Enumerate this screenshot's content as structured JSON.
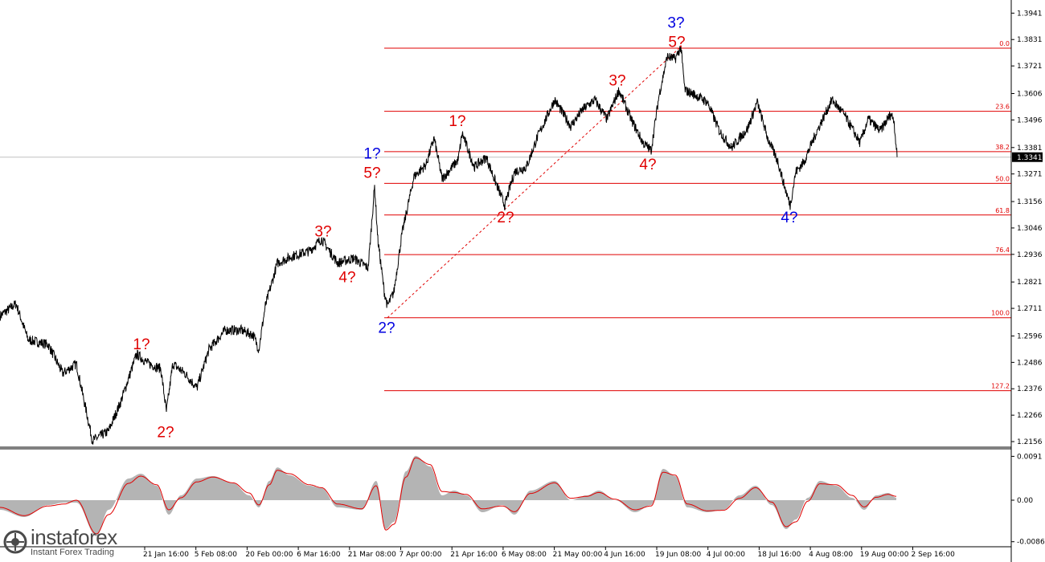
{
  "chart_data": [
    {
      "type": "line",
      "price_axis_ticks": [
        "1.3941",
        "1.3831",
        "1.3721",
        "1.3606",
        "1.3496",
        "1.3381",
        "1.3271",
        "1.3156",
        "1.3046",
        "1.2936",
        "1.2821",
        "1.2711",
        "1.2596",
        "1.2486",
        "1.2376",
        "1.2266",
        "1.2156"
      ],
      "current_price": "1.3341",
      "ylim": [
        1.2136,
        1.3989
      ],
      "time_axis_ticks": [
        "21 Jan 16:00",
        "5 Feb 08:00",
        "20 Feb 00:00",
        "6 Mar 16:00",
        "21 Mar 08:00",
        "7 Apr 00:00",
        "21 Apr 16:00",
        "6 May 08:00",
        "21 May 00:00",
        "4 Jun 16:00",
        "19 Jun 08:00",
        "4 Jul 00:00",
        "18 Jul 16:00",
        "4 Aug 08:00",
        "19 Aug 00:00",
        "2 Sep 16:00"
      ],
      "price_path": [
        [
          0,
          1.268
        ],
        [
          20,
          1.273
        ],
        [
          35,
          1.258
        ],
        [
          60,
          1.256
        ],
        [
          78,
          1.244
        ],
        [
          95,
          1.248
        ],
        [
          115,
          1.216
        ],
        [
          135,
          1.22
        ],
        [
          150,
          1.232
        ],
        [
          170,
          1.252
        ],
        [
          185,
          1.248
        ],
        [
          200,
          1.246
        ],
        [
          207,
          1.228
        ],
        [
          215,
          1.248
        ],
        [
          230,
          1.244
        ],
        [
          245,
          1.238
        ],
        [
          260,
          1.254
        ],
        [
          280,
          1.262
        ],
        [
          300,
          1.262
        ],
        [
          315,
          1.26
        ],
        [
          322,
          1.254
        ],
        [
          330,
          1.272
        ],
        [
          345,
          1.29
        ],
        [
          365,
          1.293
        ],
        [
          385,
          1.295
        ],
        [
          400,
          1.3
        ],
        [
          420,
          1.29
        ],
        [
          440,
          1.292
        ],
        [
          458,
          1.288
        ],
        [
          466,
          1.322
        ],
        [
          470,
          1.3
        ],
        [
          478,
          1.278
        ],
        [
          482,
          1.272
        ],
        [
          490,
          1.278
        ],
        [
          500,
          1.302
        ],
        [
          515,
          1.326
        ],
        [
          530,
          1.331
        ],
        [
          540,
          1.342
        ],
        [
          550,
          1.325
        ],
        [
          570,
          1.333
        ],
        [
          575,
          1.344
        ],
        [
          590,
          1.33
        ],
        [
          605,
          1.334
        ],
        [
          615,
          1.325
        ],
        [
          628,
          1.314
        ],
        [
          640,
          1.328
        ],
        [
          655,
          1.33
        ],
        [
          668,
          1.342
        ],
        [
          690,
          1.358
        ],
        [
          710,
          1.347
        ],
        [
          725,
          1.354
        ],
        [
          740,
          1.358
        ],
        [
          755,
          1.35
        ],
        [
          770,
          1.362
        ],
        [
          785,
          1.35
        ],
        [
          800,
          1.34
        ],
        [
          810,
          1.337
        ],
        [
          820,
          1.36
        ],
        [
          830,
          1.376
        ],
        [
          840,
          1.375
        ],
        [
          847,
          1.38
        ],
        [
          852,
          1.362
        ],
        [
          865,
          1.36
        ],
        [
          880,
          1.357
        ],
        [
          895,
          1.345
        ],
        [
          910,
          1.338
        ],
        [
          930,
          1.346
        ],
        [
          942,
          1.357
        ],
        [
          955,
          1.342
        ],
        [
          968,
          1.332
        ],
        [
          975,
          1.323
        ],
        [
          983,
          1.314
        ],
        [
          990,
          1.328
        ],
        [
          1000,
          1.332
        ],
        [
          1015,
          1.344
        ],
        [
          1035,
          1.358
        ],
        [
          1050,
          1.352
        ],
        [
          1070,
          1.34
        ],
        [
          1080,
          1.35
        ],
        [
          1095,
          1.345
        ],
        [
          1108,
          1.352
        ],
        [
          1112,
          1.35
        ],
        [
          1116,
          1.3341
        ]
      ]
    },
    {
      "type": "area",
      "oscillator_axis_ticks": [
        "0.0091",
        "0.00",
        "-0.00862"
      ],
      "ylim": [
        -0.0095,
        0.0105
      ],
      "histogram_path": [
        [
          0,
          -0.002
        ],
        [
          30,
          -0.0035
        ],
        [
          60,
          -0.001
        ],
        [
          80,
          -0.0005
        ],
        [
          95,
          -0.0005
        ],
        [
          120,
          -0.0075
        ],
        [
          135,
          -0.002
        ],
        [
          160,
          0.0045
        ],
        [
          175,
          0.0055
        ],
        [
          195,
          0.003
        ],
        [
          210,
          -0.003
        ],
        [
          225,
          0.001
        ],
        [
          245,
          0.0045
        ],
        [
          265,
          0.005
        ],
        [
          290,
          0.0035
        ],
        [
          310,
          0.001
        ],
        [
          322,
          -0.0015
        ],
        [
          335,
          0.004
        ],
        [
          345,
          0.0068
        ],
        [
          360,
          0.0052
        ],
        [
          385,
          0.003
        ],
        [
          400,
          0.0025
        ],
        [
          420,
          -0.0015
        ],
        [
          450,
          -0.002
        ],
        [
          468,
          0.004
        ],
        [
          480,
          -0.006
        ],
        [
          490,
          -0.0045
        ],
        [
          505,
          0.006
        ],
        [
          517,
          0.0092
        ],
        [
          535,
          0.007
        ],
        [
          550,
          0.001
        ],
        [
          565,
          0.002
        ],
        [
          580,
          0.001
        ],
        [
          600,
          -0.0025
        ],
        [
          625,
          -0.001
        ],
        [
          640,
          -0.003
        ],
        [
          660,
          0.002
        ],
        [
          690,
          0.004
        ],
        [
          710,
          0.0
        ],
        [
          730,
          0.001
        ],
        [
          745,
          0.002
        ],
        [
          765,
          0.0
        ],
        [
          790,
          -0.0025
        ],
        [
          810,
          -0.001
        ],
        [
          825,
          0.0065
        ],
        [
          840,
          0.005
        ],
        [
          855,
          -0.0015
        ],
        [
          880,
          -0.0025
        ],
        [
          900,
          -0.002
        ],
        [
          920,
          0.001
        ],
        [
          940,
          0.003
        ],
        [
          960,
          -0.001
        ],
        [
          978,
          -0.006
        ],
        [
          990,
          -0.004
        ],
        [
          1005,
          0.0005
        ],
        [
          1020,
          0.004
        ],
        [
          1040,
          0.003
        ],
        [
          1060,
          0.0005
        ],
        [
          1075,
          -0.002
        ],
        [
          1090,
          0.001
        ],
        [
          1105,
          0.0015
        ],
        [
          1115,
          0.0005
        ]
      ],
      "signal_path": [
        [
          0,
          -0.0015
        ],
        [
          30,
          -0.0032
        ],
        [
          60,
          -0.0012
        ],
        [
          80,
          -0.0008
        ],
        [
          95,
          0.0
        ],
        [
          120,
          -0.007
        ],
        [
          135,
          -0.003
        ],
        [
          160,
          0.0035
        ],
        [
          175,
          0.005
        ],
        [
          195,
          0.0032
        ],
        [
          210,
          -0.002
        ],
        [
          225,
          0.0005
        ],
        [
          245,
          0.0038
        ],
        [
          265,
          0.0048
        ],
        [
          290,
          0.0036
        ],
        [
          310,
          0.0015
        ],
        [
          322,
          -0.001
        ],
        [
          335,
          0.0032
        ],
        [
          345,
          0.0062
        ],
        [
          360,
          0.0055
        ],
        [
          385,
          0.0032
        ],
        [
          400,
          0.0026
        ],
        [
          420,
          -0.0008
        ],
        [
          450,
          -0.0018
        ],
        [
          468,
          0.003
        ],
        [
          480,
          -0.0062
        ],
        [
          490,
          -0.005
        ],
        [
          505,
          0.0048
        ],
        [
          517,
          0.0088
        ],
        [
          535,
          0.0074
        ],
        [
          550,
          0.0018
        ],
        [
          565,
          0.0016
        ],
        [
          580,
          0.0012
        ],
        [
          600,
          -0.0018
        ],
        [
          625,
          -0.0012
        ],
        [
          640,
          -0.0024
        ],
        [
          660,
          0.0014
        ],
        [
          690,
          0.0036
        ],
        [
          710,
          0.0004
        ],
        [
          730,
          0.0008
        ],
        [
          745,
          0.0016
        ],
        [
          765,
          0.0002
        ],
        [
          790,
          -0.002
        ],
        [
          810,
          -0.0012
        ],
        [
          825,
          0.0058
        ],
        [
          840,
          0.0052
        ],
        [
          855,
          -0.0008
        ],
        [
          880,
          -0.0022
        ],
        [
          900,
          -0.0021
        ],
        [
          920,
          0.0004
        ],
        [
          940,
          0.0026
        ],
        [
          960,
          -0.0004
        ],
        [
          978,
          -0.0055
        ],
        [
          990,
          -0.0045
        ],
        [
          1005,
          -0.0002
        ],
        [
          1020,
          0.0034
        ],
        [
          1040,
          0.0032
        ],
        [
          1060,
          0.001
        ],
        [
          1075,
          -0.0014
        ],
        [
          1090,
          0.0006
        ],
        [
          1105,
          0.0012
        ],
        [
          1115,
          0.0008
        ]
      ]
    }
  ],
  "fibonacci": {
    "levels": [
      {
        "label": "0.0",
        "price": 1.3795
      },
      {
        "label": "23.6",
        "price": 1.3532
      },
      {
        "label": "38.2",
        "price": 1.3364
      },
      {
        "label": "50.0",
        "price": 1.3232
      },
      {
        "label": "61.8",
        "price": 1.31
      },
      {
        "label": "76.4",
        "price": 1.2935
      },
      {
        "label": "100.0",
        "price": 1.2672
      },
      {
        "label": "127.2",
        "price": 1.2368
      }
    ],
    "color": "#e00000"
  },
  "wave_labels": [
    {
      "text": "1?",
      "color": "#e00000",
      "bar": 176,
      "price": 1.254
    },
    {
      "text": "2?",
      "color": "#e00000",
      "bar": 206,
      "price": 1.2175
    },
    {
      "text": "3?",
      "color": "#e00000",
      "bar": 402,
      "price": 1.301
    },
    {
      "text": "4?",
      "color": "#e00000",
      "bar": 432,
      "price": 1.282
    },
    {
      "text": "1?",
      "color": "#0000e0",
      "bar": 463,
      "price": 1.3335
    },
    {
      "text": "5?",
      "color": "#e00000",
      "bar": 463,
      "price": 1.3255
    },
    {
      "text": "2?",
      "color": "#0000e0",
      "bar": 481,
      "price": 1.261
    },
    {
      "text": "1?",
      "color": "#e00000",
      "bar": 569,
      "price": 1.347
    },
    {
      "text": "2?",
      "color": "#e00000",
      "bar": 629,
      "price": 1.307
    },
    {
      "text": "3?",
      "color": "#e00000",
      "bar": 768,
      "price": 1.364
    },
    {
      "text": "4?",
      "color": "#e00000",
      "bar": 806,
      "price": 1.329
    },
    {
      "text": "3?",
      "color": "#0000e0",
      "bar": 841,
      "price": 1.388
    },
    {
      "text": "5?",
      "color": "#e00000",
      "bar": 842,
      "price": 1.38
    },
    {
      "text": "4?",
      "color": "#0000e0",
      "bar": 982,
      "price": 1.307
    }
  ],
  "colors": {
    "price_line": "#000000",
    "fib_line": "#e00000",
    "histogram": "#b4b4b4",
    "signal_line": "#e00000",
    "current_price_bg": "#000000"
  },
  "logo": {
    "brand": "instaforex",
    "tagline": "Instant Forex Trading"
  }
}
